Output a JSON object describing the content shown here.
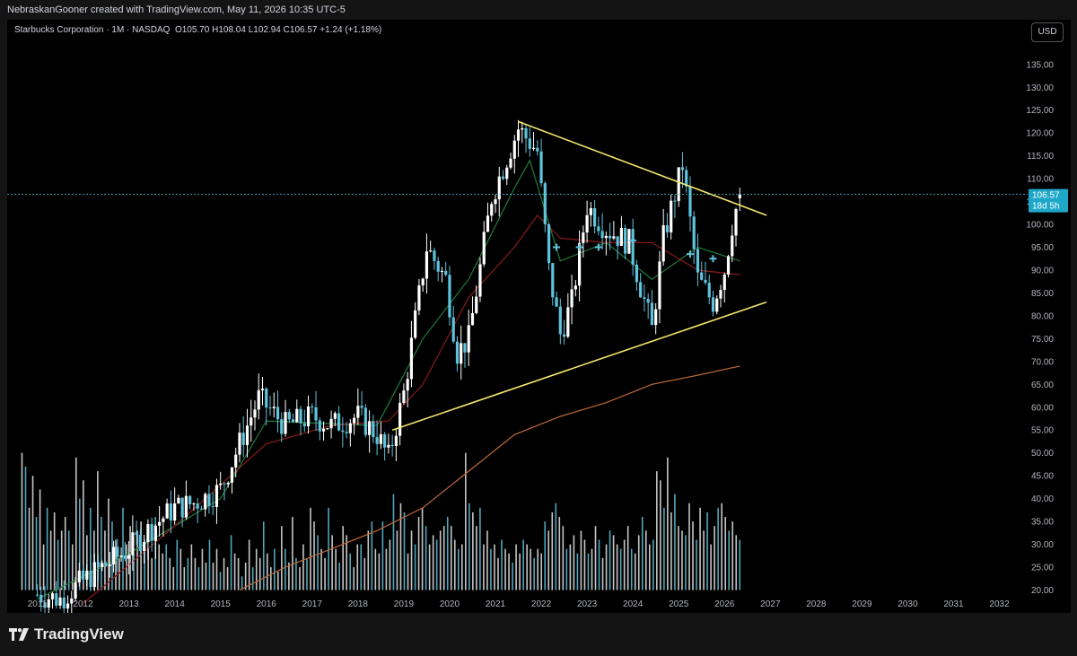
{
  "header": {
    "text": "NebraskanGooner created with TradingView.com, May 11, 2026 10:35 UTC-5"
  },
  "symbol": {
    "name": "Starbucks Corporation · 1M · NASDAQ",
    "o_label": "O",
    "o": "105.70",
    "h_label": "H",
    "h": "108.04",
    "l_label": "L",
    "l": "102.94",
    "c_label": "C",
    "c": "106.57",
    "change": "+1.24 (+1.18%)"
  },
  "currency_button": "USD",
  "price_tag": {
    "price": "106.57",
    "countdown": "18d 5h"
  },
  "brand": "TradingView",
  "colors": {
    "up": "#ffffff",
    "down": "#5ec3dc",
    "trendline": "#f5e66a",
    "ma_short": "#1f7a3a",
    "ma_mid": "#8b1a1a",
    "ma_long": "#c0693a",
    "volume": "#5ec3dc"
  },
  "chart_data": {
    "type": "candlestick",
    "title": "Starbucks Corporation · 1M · NASDAQ",
    "ylim": [
      20,
      140
    ],
    "y_ticks": [
      "135.00",
      "130.00",
      "125.00",
      "120.00",
      "115.00",
      "110.00",
      "105.00",
      "100.00",
      "95.00",
      "90.00",
      "85.00",
      "80.00",
      "75.00",
      "70.00",
      "65.00",
      "60.00",
      "55.00",
      "50.00",
      "45.00",
      "40.00",
      "35.00",
      "30.00",
      "25.00",
      "20.00"
    ],
    "x_ticks": [
      "2011",
      "2012",
      "2013",
      "2014",
      "2015",
      "2016",
      "2017",
      "2018",
      "2019",
      "2020",
      "2021",
      "2022",
      "2023",
      "2024",
      "2025",
      "2026",
      "2027",
      "2028",
      "2029",
      "2030",
      "2031",
      "2032"
    ],
    "price_path": [
      [
        "2011-01",
        19
      ],
      [
        "2011-07",
        18
      ],
      [
        "2012-01",
        22
      ],
      [
        "2012-06",
        25
      ],
      [
        "2013-01",
        29
      ],
      [
        "2013-06",
        33
      ],
      [
        "2014-01",
        38
      ],
      [
        "2014-06",
        39
      ],
      [
        "2015-01",
        42
      ],
      [
        "2015-06",
        52
      ],
      [
        "2015-11",
        62
      ],
      [
        "2016-06",
        56
      ],
      [
        "2017-01",
        58
      ],
      [
        "2017-06",
        56
      ],
      [
        "2018-01",
        58
      ],
      [
        "2018-06",
        54
      ],
      [
        "2018-09",
        49
      ],
      [
        "2019-01",
        63
      ],
      [
        "2019-07",
        95
      ],
      [
        "2019-12",
        88
      ],
      [
        "2020-03",
        72
      ],
      [
        "2020-06",
        75
      ],
      [
        "2020-12",
        106
      ],
      [
        "2021-07",
        121
      ],
      [
        "2021-12",
        116
      ],
      [
        "2022-03",
        90
      ],
      [
        "2022-06",
        76
      ],
      [
        "2022-09",
        83
      ],
      [
        "2023-01",
        104
      ],
      [
        "2023-06",
        99
      ],
      [
        "2023-12",
        96
      ],
      [
        "2024-06",
        77
      ],
      [
        "2024-09",
        97
      ],
      [
        "2025-02",
        113
      ],
      [
        "2025-06",
        88
      ],
      [
        "2025-10",
        83
      ],
      [
        "2026-01",
        90
      ],
      [
        "2026-03",
        100
      ],
      [
        "2026-05",
        106.57
      ]
    ],
    "ma_short": [
      [
        "2011-01",
        18
      ],
      [
        "2013-01",
        28
      ],
      [
        "2015-01",
        40
      ],
      [
        "2016-01",
        57
      ],
      [
        "2018-06",
        56
      ],
      [
        "2019-06",
        75
      ],
      [
        "2020-06",
        88
      ],
      [
        "2021-06",
        108
      ],
      [
        "2021-10",
        114
      ],
      [
        "2022-06",
        92
      ],
      [
        "2023-06",
        96
      ],
      [
        "2024-06",
        88
      ],
      [
        "2025-06",
        95
      ],
      [
        "2026-05",
        92
      ]
    ],
    "ma_mid": [
      [
        "2012-01",
        17
      ],
      [
        "2014-01",
        34
      ],
      [
        "2016-01",
        52
      ],
      [
        "2017-06",
        56
      ],
      [
        "2018-09",
        57
      ],
      [
        "2019-06",
        65
      ],
      [
        "2020-06",
        84
      ],
      [
        "2021-06",
        95
      ],
      [
        "2021-12",
        102
      ],
      [
        "2022-06",
        97
      ],
      [
        "2023-06",
        96
      ],
      [
        "2024-06",
        96
      ],
      [
        "2025-06",
        90
      ],
      [
        "2026-05",
        89
      ]
    ],
    "ma_long": [
      [
        "2015-06",
        20
      ],
      [
        "2016-06",
        25
      ],
      [
        "2017-06",
        29
      ],
      [
        "2018-06",
        33
      ],
      [
        "2019-06",
        38
      ],
      [
        "2020-06",
        46
      ],
      [
        "2021-06",
        54
      ],
      [
        "2022-06",
        58
      ],
      [
        "2023-06",
        61
      ],
      [
        "2024-06",
        65
      ],
      [
        "2025-06",
        67
      ],
      [
        "2026-05",
        69
      ]
    ],
    "trendlines": [
      {
        "from": [
          "2021-07",
          122.5
        ],
        "to": [
          "2026-12",
          102
        ]
      },
      {
        "from": [
          "2018-10",
          55
        ],
        "to": [
          "2026-12",
          83
        ]
      }
    ],
    "markers": [
      [
        "2022-05",
        95
      ],
      [
        "2022-11",
        95
      ],
      [
        "2023-04",
        95
      ],
      [
        "2024-01",
        96.5
      ],
      [
        "2025-04",
        93.5
      ],
      [
        "2025-10",
        92.5
      ]
    ],
    "volume": [
      50,
      47,
      38,
      45,
      36,
      42,
      30,
      38,
      33,
      37,
      31,
      33,
      36,
      33,
      30,
      49,
      40,
      44,
      32,
      38,
      33,
      46,
      36,
      33,
      40,
      35,
      31,
      27,
      38,
      30,
      34,
      28,
      33,
      35,
      31,
      29,
      27,
      36,
      30,
      28,
      30,
      27,
      25,
      31,
      29,
      25,
      27,
      30,
      27,
      25,
      29,
      26,
      31,
      26,
      29,
      24,
      27,
      25,
      32,
      28,
      27,
      23,
      26,
      31,
      25,
      29,
      27,
      35,
      28,
      25,
      29,
      24,
      34,
      29,
      26,
      36,
      27,
      25,
      30,
      27,
      38,
      35,
      32,
      29,
      27,
      38,
      32,
      29,
      26,
      34,
      32,
      28,
      25,
      30,
      30,
      27,
      33,
      35,
      29,
      28,
      35,
      29,
      31,
      41,
      33,
      39,
      37,
      28,
      33,
      30,
      36,
      38,
      34,
      30,
      32,
      31,
      33,
      34,
      36,
      34,
      31,
      29,
      30,
      50,
      39,
      37,
      34,
      38,
      30,
      33,
      29,
      30,
      27,
      31,
      29,
      28,
      26,
      30,
      28,
      31,
      30,
      29,
      27,
      29,
      28,
      35,
      33,
      37,
      39,
      36,
      34,
      29,
      30,
      32,
      28,
      33,
      31,
      28,
      29,
      34,
      31,
      27,
      30,
      33,
      32,
      30,
      29,
      31,
      34,
      29,
      28,
      32,
      36,
      33,
      30,
      31,
      46,
      44,
      38,
      49,
      37,
      41,
      34,
      33,
      32,
      39,
      35,
      31,
      38,
      33,
      37,
      30,
      34,
      38,
      39,
      36,
      33,
      35,
      32,
      31
    ],
    "last_price": 106.57,
    "grid": false
  }
}
